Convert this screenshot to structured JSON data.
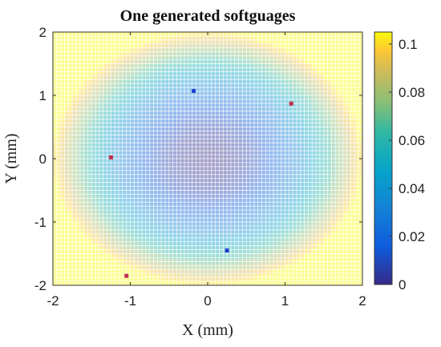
{
  "chart_data": {
    "type": "heatmap",
    "title": "One generated softguages",
    "xlabel": "X (mm)",
    "ylabel": "Y (mm)",
    "xlim": [
      -2,
      2
    ],
    "ylim": [
      -2,
      2
    ],
    "xticks": [
      "-2",
      "-1",
      "0",
      "1",
      "2"
    ],
    "yticks": [
      "-2",
      "-1",
      "0",
      "1",
      "2"
    ],
    "colorbar": {
      "min": 0,
      "max": 0.105,
      "ticks": [
        "0",
        "0.02",
        "0.04",
        "0.06",
        "0.08",
        "0.1"
      ]
    },
    "surface": "radial distance squared, about 0.026 × (x² + y²)",
    "grid": "on",
    "points": [
      {
        "x": -0.18,
        "y": 1.07,
        "color": "#2040d0"
      },
      {
        "x": 1.08,
        "y": 0.87,
        "color": "#c03050"
      },
      {
        "x": -1.25,
        "y": 0.02,
        "color": "#c03050"
      },
      {
        "x": 0.25,
        "y": -1.45,
        "color": "#2040d0"
      },
      {
        "x": -1.05,
        "y": -1.85,
        "color": "#c03050"
      }
    ]
  }
}
